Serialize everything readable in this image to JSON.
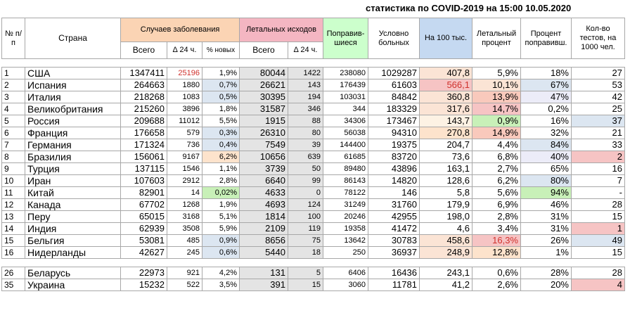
{
  "title": "статистика по COVID-2019 на 15:00 10.05.2020",
  "headers": {
    "num": "№ п/п",
    "country": "Страна",
    "cases_group": "Случаев заболевания",
    "deaths_group": "Летальных исходов",
    "recovered": "Поправив-шиеся",
    "sick": "Условно больных",
    "per100k": "На 100 тыс.",
    "mortality": "Летальный процент",
    "recovered_pct": "Процент поправивш.",
    "tests": "Кол-во тестов, на 1000 чел.",
    "total": "Всего",
    "delta24": "Δ 24 ч.",
    "pct_new": "% новых"
  },
  "rows": [
    {
      "n": "1",
      "country": "США",
      "cases": "1347411",
      "dcases": "25196",
      "pct_new": "1,9%",
      "deaths": "80044",
      "ddeaths": "1422",
      "recovered": "238080",
      "sick": "1029287",
      "per100k": "407,8",
      "mortality": "5,9%",
      "recovered_pct": "18%",
      "tests": "27"
    },
    {
      "n": "2",
      "country": "Испания",
      "cases": "264663",
      "dcases": "1880",
      "pct_new": "0,7%",
      "deaths": "26621",
      "ddeaths": "143",
      "recovered": "176439",
      "sick": "61603",
      "per100k": "566,1",
      "mortality": "10,1%",
      "recovered_pct": "67%",
      "tests": "53"
    },
    {
      "n": "3",
      "country": "Италия",
      "cases": "218268",
      "dcases": "1083",
      "pct_new": "0,5%",
      "deaths": "30395",
      "ddeaths": "194",
      "recovered": "103031",
      "sick": "84842",
      "per100k": "360,8",
      "mortality": "13,9%",
      "recovered_pct": "47%",
      "tests": "42"
    },
    {
      "n": "4",
      "country": "Великобритания",
      "cases": "215260",
      "dcases": "3896",
      "pct_new": "1,8%",
      "deaths": "31587",
      "ddeaths": "346",
      "recovered": "344",
      "sick": "183329",
      "per100k": "317,6",
      "mortality": "14,7%",
      "recovered_pct": "0,2%",
      "tests": "25"
    },
    {
      "n": "5",
      "country": "Россия",
      "cases": "209688",
      "dcases": "11012",
      "pct_new": "5,5%",
      "deaths": "1915",
      "ddeaths": "88",
      "recovered": "34306",
      "sick": "173467",
      "per100k": "143,7",
      "mortality": "0,9%",
      "recovered_pct": "16%",
      "tests": "37"
    },
    {
      "n": "6",
      "country": "Франция",
      "cases": "176658",
      "dcases": "579",
      "pct_new": "0,3%",
      "deaths": "26310",
      "ddeaths": "80",
      "recovered": "56038",
      "sick": "94310",
      "per100k": "270,8",
      "mortality": "14,9%",
      "recovered_pct": "32%",
      "tests": "21"
    },
    {
      "n": "7",
      "country": "Германия",
      "cases": "171324",
      "dcases": "736",
      "pct_new": "0,4%",
      "deaths": "7549",
      "ddeaths": "39",
      "recovered": "144400",
      "sick": "19375",
      "per100k": "204,7",
      "mortality": "4,4%",
      "recovered_pct": "84%",
      "tests": "33"
    },
    {
      "n": "8",
      "country": "Бразилия",
      "cases": "156061",
      "dcases": "9167",
      "pct_new": "6,2%",
      "deaths": "10656",
      "ddeaths": "639",
      "recovered": "61685",
      "sick": "83720",
      "per100k": "73,6",
      "mortality": "6,8%",
      "recovered_pct": "40%",
      "tests": "2"
    },
    {
      "n": "9",
      "country": "Турция",
      "cases": "137115",
      "dcases": "1546",
      "pct_new": "1,1%",
      "deaths": "3739",
      "ddeaths": "50",
      "recovered": "89480",
      "sick": "43896",
      "per100k": "163,1",
      "mortality": "2,7%",
      "recovered_pct": "65%",
      "tests": "16"
    },
    {
      "n": "10",
      "country": "Иран",
      "cases": "107603",
      "dcases": "2912",
      "pct_new": "2,8%",
      "deaths": "6640",
      "ddeaths": "99",
      "recovered": "86143",
      "sick": "14820",
      "per100k": "128,6",
      "mortality": "6,2%",
      "recovered_pct": "80%",
      "tests": "7"
    },
    {
      "n": "11",
      "country": "Китай",
      "cases": "82901",
      "dcases": "14",
      "pct_new": "0,02%",
      "deaths": "4633",
      "ddeaths": "0",
      "recovered": "78122",
      "sick": "146",
      "per100k": "5,8",
      "mortality": "5,6%",
      "recovered_pct": "94%",
      "tests": "-"
    },
    {
      "n": "12",
      "country": "Канада",
      "cases": "67702",
      "dcases": "1268",
      "pct_new": "1,9%",
      "deaths": "4693",
      "ddeaths": "124",
      "recovered": "31249",
      "sick": "31760",
      "per100k": "179,9",
      "mortality": "6,9%",
      "recovered_pct": "46%",
      "tests": "28"
    },
    {
      "n": "13",
      "country": "Перу",
      "cases": "65015",
      "dcases": "3168",
      "pct_new": "5,1%",
      "deaths": "1814",
      "ddeaths": "100",
      "recovered": "20246",
      "sick": "42955",
      "per100k": "198,0",
      "mortality": "2,8%",
      "recovered_pct": "31%",
      "tests": "15"
    },
    {
      "n": "14",
      "country": "Индия",
      "cases": "62939",
      "dcases": "3508",
      "pct_new": "5,9%",
      "deaths": "2109",
      "ddeaths": "119",
      "recovered": "19358",
      "sick": "41472",
      "per100k": "4,6",
      "mortality": "3,4%",
      "recovered_pct": "31%",
      "tests": "1"
    },
    {
      "n": "15",
      "country": "Бельгия",
      "cases": "53081",
      "dcases": "485",
      "pct_new": "0,9%",
      "deaths": "8656",
      "ddeaths": "75",
      "recovered": "13642",
      "sick": "30783",
      "per100k": "458,6",
      "mortality": "16,3%",
      "recovered_pct": "26%",
      "tests": "49"
    },
    {
      "n": "16",
      "country": "Нидерланды",
      "cases": "42627",
      "dcases": "245",
      "pct_new": "0,6%",
      "deaths": "5440",
      "ddeaths": "18",
      "recovered": "250",
      "sick": "36937",
      "per100k": "248,9",
      "mortality": "12,8%",
      "recovered_pct": "1%",
      "tests": "15"
    },
    {
      "n": "26",
      "country": "Беларусь",
      "cases": "22973",
      "dcases": "921",
      "pct_new": "4,2%",
      "deaths": "131",
      "ddeaths": "5",
      "recovered": "6406",
      "sick": "16436",
      "per100k": "243,1",
      "mortality": "0,6%",
      "recovered_pct": "28%",
      "tests": "28"
    },
    {
      "n": "35",
      "country": "Украина",
      "cases": "15232",
      "dcases": "522",
      "pct_new": "3,5%",
      "deaths": "391",
      "ddeaths": "15",
      "recovered": "3060",
      "sick": "11781",
      "per100k": "41,2",
      "mortality": "2,6%",
      "recovered_pct": "20%",
      "tests": "4"
    }
  ],
  "colors": {
    "header_cases": "#fbd4b4",
    "header_deaths": "#f4b6c2",
    "header_recovered": "#ccffcc",
    "header_per100k": "#c5d9f1",
    "delta_red_text": "#d0312d"
  }
}
